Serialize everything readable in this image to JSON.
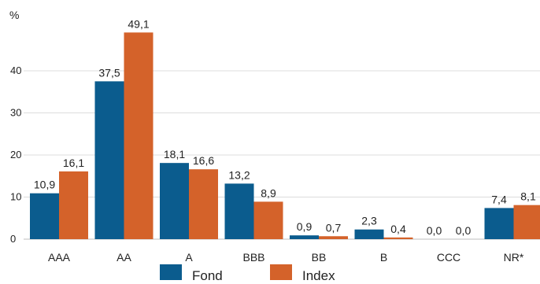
{
  "chart_data": {
    "type": "bar",
    "categories": [
      "AAA",
      "AA",
      "A",
      "BBB",
      "BB",
      "B",
      "CCC",
      "NR*"
    ],
    "series": [
      {
        "name": "Fond",
        "color": "#0b5c8e",
        "values": [
          10.9,
          37.5,
          18.1,
          13.2,
          0.9,
          2.3,
          0.0,
          7.4
        ],
        "labels": [
          "10,9",
          "37,5",
          "18,1",
          "13,2",
          "0,9",
          "2,3",
          "0,0",
          "7,4"
        ]
      },
      {
        "name": "Index",
        "color": "#d4622a",
        "values": [
          16.1,
          49.1,
          16.6,
          8.9,
          0.7,
          0.4,
          0.0,
          8.1
        ],
        "labels": [
          "16,1",
          "49,1",
          "16,6",
          "8,9",
          "0,7",
          "0,4",
          "0,0",
          "8,1"
        ]
      }
    ],
    "ylabel": "%",
    "ylim": [
      0,
      50
    ],
    "yticks": [
      0,
      10,
      20,
      30,
      40
    ],
    "grid": true,
    "legend_position": "bottom-center"
  }
}
